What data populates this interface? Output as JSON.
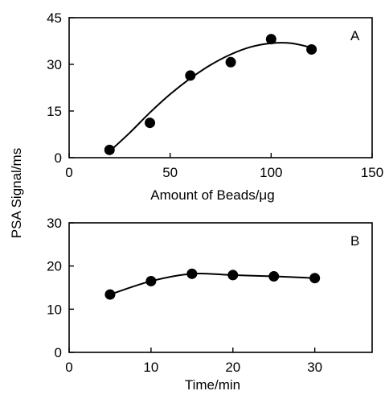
{
  "ylabel": "PSA Signal/ms",
  "chart_data": [
    {
      "type": "scatter",
      "panel_label": "A",
      "xlabel": "Amount of Beads/μg",
      "ylabel": "",
      "xlim": [
        0,
        150
      ],
      "ylim": [
        0,
        45
      ],
      "x_ticks": [
        "0",
        "50",
        "100",
        "150"
      ],
      "y_ticks": [
        "0",
        "15",
        "30",
        "45"
      ],
      "grid": false,
      "points": [
        {
          "x": 20,
          "y": 2.5
        },
        {
          "x": 40,
          "y": 11.2
        },
        {
          "x": 60,
          "y": 26.4
        },
        {
          "x": 80,
          "y": 30.7
        },
        {
          "x": 100,
          "y": 38.1
        },
        {
          "x": 120,
          "y": 34.8
        }
      ],
      "fit_curve": [
        {
          "x": 20,
          "y": 2.0
        },
        {
          "x": 30,
          "y": 8.0
        },
        {
          "x": 40,
          "y": 14.5
        },
        {
          "x": 50,
          "y": 20.4
        },
        {
          "x": 60,
          "y": 25.5
        },
        {
          "x": 70,
          "y": 29.8
        },
        {
          "x": 80,
          "y": 33.2
        },
        {
          "x": 90,
          "y": 35.6
        },
        {
          "x": 100,
          "y": 36.8
        },
        {
          "x": 110,
          "y": 36.8
        },
        {
          "x": 120,
          "y": 35.4
        }
      ]
    },
    {
      "type": "line",
      "panel_label": "B",
      "xlabel": "Time/min",
      "ylabel": "",
      "xlim": [
        0,
        37
      ],
      "ylim": [
        0,
        30
      ],
      "x_ticks": [
        "0",
        "10",
        "20",
        "30"
      ],
      "y_ticks": [
        "0",
        "10",
        "20",
        "30"
      ],
      "grid": false,
      "points": [
        {
          "x": 5,
          "y": 13.4
        },
        {
          "x": 10,
          "y": 16.5
        },
        {
          "x": 15,
          "y": 18.2
        },
        {
          "x": 20,
          "y": 17.9
        },
        {
          "x": 25,
          "y": 17.6
        },
        {
          "x": 30,
          "y": 17.2
        }
      ]
    }
  ]
}
